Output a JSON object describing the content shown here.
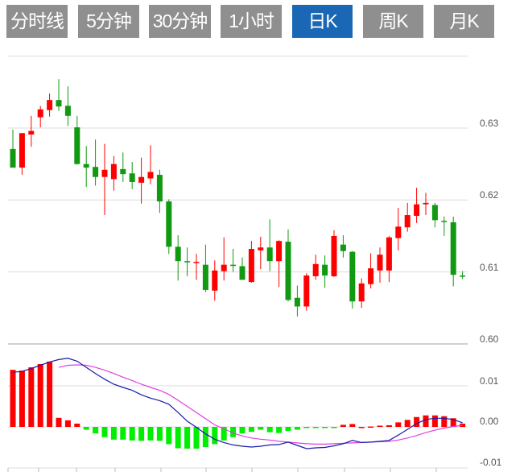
{
  "tabs": [
    {
      "label": "分时线",
      "active": false
    },
    {
      "label": "5分钟",
      "active": false
    },
    {
      "label": "30分钟",
      "active": false
    },
    {
      "label": "1小时",
      "active": false
    },
    {
      "label": "日K",
      "active": true
    },
    {
      "label": "周K",
      "active": false
    },
    {
      "label": "月K",
      "active": false
    }
  ],
  "colors": {
    "up": "#ff0000",
    "down": "#119911",
    "hist_up": "#ff0000",
    "hist_down": "#00ee00",
    "dif": "#1a1aaa",
    "dea": "#e040e0",
    "active_tab": "#1a67b5",
    "tab": "#8f8f8f"
  },
  "chart_data": [
    {
      "type": "candlestick",
      "yticks": [
        "0.63",
        "0.62",
        "0.61",
        "0.60"
      ],
      "ylim": [
        0.6,
        0.64
      ],
      "grid": true,
      "ohlc": [
        [
          0.6271,
          0.6298,
          0.6245,
          0.6245
        ],
        [
          0.6245,
          0.6293,
          0.6235,
          0.6293
        ],
        [
          0.6291,
          0.6317,
          0.6274,
          0.6296
        ],
        [
          0.6315,
          0.6331,
          0.6301,
          0.6326
        ],
        [
          0.6325,
          0.6348,
          0.6316,
          0.6339
        ],
        [
          0.6339,
          0.6368,
          0.6324,
          0.633
        ],
        [
          0.6331,
          0.6358,
          0.6303,
          0.6317
        ],
        [
          0.6301,
          0.6317,
          0.6249,
          0.625
        ],
        [
          0.625,
          0.6275,
          0.6218,
          0.6245
        ],
        [
          0.6246,
          0.6284,
          0.622,
          0.6232
        ],
        [
          0.6232,
          0.6278,
          0.6179,
          0.6242
        ],
        [
          0.6229,
          0.6261,
          0.6213,
          0.625
        ],
        [
          0.6243,
          0.6266,
          0.6225,
          0.6236
        ],
        [
          0.6237,
          0.6253,
          0.6215,
          0.6225
        ],
        [
          0.6224,
          0.6259,
          0.6195,
          0.6232
        ],
        [
          0.623,
          0.6276,
          0.6222,
          0.6239
        ],
        [
          0.6235,
          0.6242,
          0.6182,
          0.6198
        ],
        [
          0.6198,
          0.6201,
          0.6125,
          0.6135
        ],
        [
          0.6135,
          0.6151,
          0.6088,
          0.6115
        ],
        [
          0.6115,
          0.6134,
          0.6094,
          0.6114
        ],
        [
          0.6113,
          0.6125,
          0.6089,
          0.6114
        ],
        [
          0.611,
          0.6138,
          0.6072,
          0.6075
        ],
        [
          0.6074,
          0.6116,
          0.606,
          0.6102
        ],
        [
          0.6101,
          0.6148,
          0.6088,
          0.611
        ],
        [
          0.611,
          0.6132,
          0.61,
          0.6109
        ],
        [
          0.6108,
          0.612,
          0.6089,
          0.6089
        ],
        [
          0.6086,
          0.6143,
          0.6085,
          0.6132
        ],
        [
          0.613,
          0.6149,
          0.6104,
          0.6134
        ],
        [
          0.6134,
          0.6173,
          0.6101,
          0.6115
        ],
        [
          0.6115,
          0.6144,
          0.6079,
          0.6143
        ],
        [
          0.6142,
          0.6159,
          0.6059,
          0.6061
        ],
        [
          0.6064,
          0.6081,
          0.6038,
          0.6052
        ],
        [
          0.6052,
          0.6098,
          0.6046,
          0.6095
        ],
        [
          0.6094,
          0.6124,
          0.6089,
          0.6111
        ],
        [
          0.611,
          0.6123,
          0.6078,
          0.6095
        ],
        [
          0.6094,
          0.6158,
          0.6093,
          0.615
        ],
        [
          0.6138,
          0.6151,
          0.612,
          0.6129
        ],
        [
          0.6128,
          0.6129,
          0.6049,
          0.6059
        ],
        [
          0.6059,
          0.6091,
          0.605,
          0.6084
        ],
        [
          0.6083,
          0.6126,
          0.6077,
          0.6105
        ],
        [
          0.6102,
          0.6134,
          0.6085,
          0.6124
        ],
        [
          0.6102,
          0.615,
          0.6086,
          0.6148
        ],
        [
          0.6147,
          0.6189,
          0.613,
          0.6163
        ],
        [
          0.6162,
          0.6196,
          0.6156,
          0.6179
        ],
        [
          0.6178,
          0.6217,
          0.6168,
          0.6194
        ],
        [
          0.6194,
          0.621,
          0.6179,
          0.6196
        ],
        [
          0.6193,
          0.6196,
          0.6162,
          0.6172
        ],
        [
          0.6171,
          0.6177,
          0.615,
          0.617
        ],
        [
          0.6169,
          0.6177,
          0.608,
          0.6096
        ],
        [
          0.6095,
          0.6101,
          0.609,
          0.6094
        ]
      ]
    },
    {
      "type": "macd",
      "yticks": [
        "0.01",
        "0.00",
        "-0.01"
      ],
      "ylim": [
        -0.01,
        0.02
      ],
      "grid": true,
      "histogram": [
        0.0139,
        0.0137,
        0.0145,
        0.0153,
        0.0159,
        0.0022,
        0.0016,
        0.0008,
        -0.0007,
        -0.0016,
        -0.0025,
        -0.0031,
        -0.0031,
        -0.0033,
        -0.0034,
        -0.0033,
        -0.0034,
        -0.0042,
        -0.0052,
        -0.0053,
        -0.0053,
        -0.0049,
        -0.0042,
        -0.0033,
        -0.0025,
        -0.0016,
        -0.0012,
        -0.0007,
        -0.0013,
        -0.0015,
        -0.001,
        -0.0007,
        -0.0003,
        -0.0003,
        -0.0002,
        -0.0001,
        0.0005,
        0.0007,
        0.0,
        0.0001,
        0.0003,
        0.0004,
        0.0011,
        0.0017,
        0.0024,
        0.0028,
        0.0028,
        0.0026,
        0.0021,
        0.0008
      ],
      "dif": [
        0.0133,
        0.0135,
        0.0142,
        0.015,
        0.0158,
        0.0164,
        0.0167,
        0.016,
        0.0145,
        0.013,
        0.0116,
        0.0104,
        0.0096,
        0.0089,
        0.0078,
        0.007,
        0.0064,
        0.0055,
        0.0035,
        0.0014,
        -0.0001,
        -0.0017,
        -0.003,
        -0.0038,
        -0.0044,
        -0.0047,
        -0.0049,
        -0.0047,
        -0.0044,
        -0.0043,
        -0.0037,
        -0.0045,
        -0.0053,
        -0.0051,
        -0.005,
        -0.0046,
        -0.0041,
        -0.0033,
        -0.0038,
        -0.0037,
        -0.0035,
        -0.0033,
        -0.002,
        -0.0006,
        0.0008,
        0.0018,
        0.0021,
        0.0021,
        0.0018,
        0.001
      ],
      "dea": [
        null,
        null,
        null,
        null,
        null,
        0.0145,
        0.015,
        0.0151,
        0.015,
        0.0145,
        0.0138,
        0.013,
        0.0121,
        0.0113,
        0.0104,
        0.0096,
        0.0089,
        0.0079,
        0.0065,
        0.005,
        0.0035,
        0.002,
        0.0005,
        -0.0005,
        -0.0015,
        -0.0022,
        -0.0027,
        -0.003,
        -0.0032,
        -0.0035,
        -0.0037,
        -0.0039,
        -0.0041,
        -0.0042,
        -0.0042,
        -0.0041,
        -0.004,
        -0.0039,
        -0.0038,
        -0.0037,
        -0.0036,
        -0.0035,
        -0.0032,
        -0.0027,
        -0.0021,
        -0.0014,
        -0.0008,
        -0.0003,
        0.0001,
        0.0004
      ]
    }
  ]
}
